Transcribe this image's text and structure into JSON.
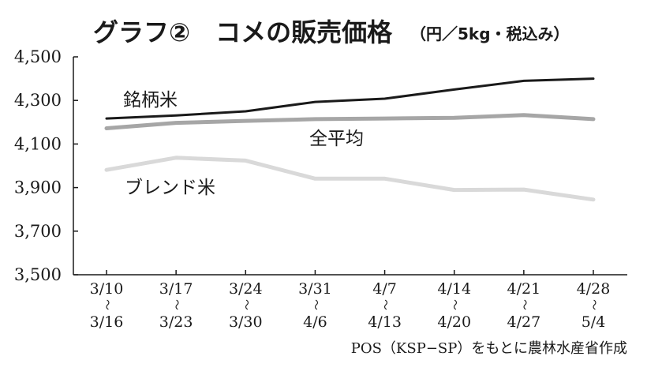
{
  "chart_data": {
    "type": "line",
    "title": "グラフ②　コメの販売価格",
    "subtitle": "（円／5kg・税込み）",
    "source": "POS（KSP−SP）をもとに農林水産省作成",
    "ylim": [
      3500,
      4500
    ],
    "yticks": [
      "4,500",
      "4,300",
      "4,100",
      "3,900",
      "3,700",
      "3,500"
    ],
    "ytick_values": [
      4500,
      4300,
      4100,
      3900,
      3700,
      3500
    ],
    "categories": [
      {
        "from": "3/10",
        "to": "3/16"
      },
      {
        "from": "3/17",
        "to": "3/23"
      },
      {
        "from": "3/24",
        "to": "3/30"
      },
      {
        "from": "3/31",
        "to": "4/6"
      },
      {
        "from": "4/7",
        "to": "4/13"
      },
      {
        "from": "4/14",
        "to": "4/20"
      },
      {
        "from": "4/21",
        "to": "4/27"
      },
      {
        "from": "4/28",
        "to": "5/4"
      }
    ],
    "range_sep": "〜",
    "series": [
      {
        "name": "銘柄米",
        "color": "#1a1a1a",
        "values": [
          4217,
          4231,
          4250,
          4293,
          4308,
          4350,
          4390,
          4400
        ]
      },
      {
        "name": "全平均",
        "color": "#a6a6a6",
        "values": [
          4172,
          4197,
          4206,
          4214,
          4217,
          4220,
          4233,
          4214
        ]
      },
      {
        "name": "ブレンド米",
        "color": "#d9d9d9",
        "values": [
          3981,
          4037,
          4024,
          3941,
          3941,
          3889,
          3891,
          3845
        ]
      }
    ],
    "grid": false,
    "legend": "inline-labels"
  }
}
